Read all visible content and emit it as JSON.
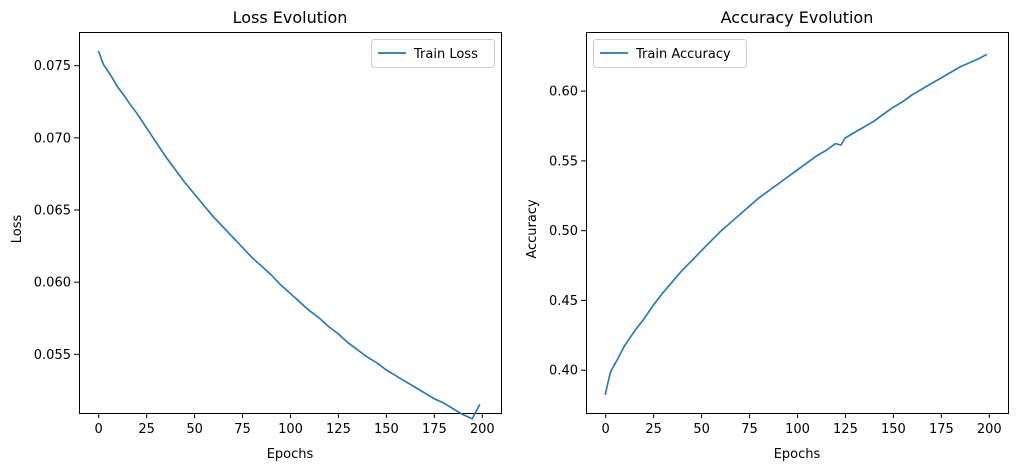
{
  "chart_data": [
    {
      "type": "line",
      "title": "Loss Evolution",
      "xlabel": "Epochs",
      "ylabel": "Loss",
      "xlim": [
        -10,
        210
      ],
      "ylim": [
        0.0509,
        0.0773
      ],
      "xticks": [
        0,
        25,
        50,
        75,
        100,
        125,
        150,
        175,
        200
      ],
      "yticks": [
        0.055,
        0.06,
        0.065,
        0.07,
        0.075
      ],
      "ytick_labels": [
        "0.055",
        "0.060",
        "0.065",
        "0.070",
        "0.075"
      ],
      "legend_position": "top-right",
      "grid": false,
      "series": [
        {
          "name": "Train Loss",
          "color": "#1f77b4",
          "x": [
            0,
            1,
            2,
            3,
            4,
            5,
            7,
            10,
            13,
            16,
            20,
            25,
            30,
            35,
            40,
            45,
            50,
            55,
            60,
            65,
            70,
            75,
            80,
            85,
            90,
            95,
            100,
            105,
            110,
            115,
            120,
            125,
            130,
            135,
            140,
            145,
            150,
            155,
            160,
            165,
            170,
            175,
            180,
            185,
            190,
            195,
            199
          ],
          "values": [
            0.076,
            0.0757,
            0.0753,
            0.075,
            0.0748,
            0.0746,
            0.0742,
            0.0735,
            0.073,
            0.0724,
            0.0717,
            0.0707,
            0.0697,
            0.0687,
            0.0678,
            0.0669,
            0.0661,
            0.0653,
            0.0645,
            0.0638,
            0.0631,
            0.0624,
            0.0617,
            0.0611,
            0.0605,
            0.0598,
            0.0592,
            0.0586,
            0.058,
            0.0575,
            0.0569,
            0.0564,
            0.0558,
            0.0553,
            0.0548,
            0.0544,
            0.0539,
            0.0535,
            0.0531,
            0.0527,
            0.0523,
            0.0519,
            0.0516,
            0.0512,
            0.0508,
            0.0505,
            0.0515
          ]
        }
      ]
    },
    {
      "type": "line",
      "title": "Accuracy Evolution",
      "xlabel": "Epochs",
      "ylabel": "Accuracy",
      "xlim": [
        -10,
        210
      ],
      "ylim": [
        0.369,
        0.642
      ],
      "xticks": [
        0,
        25,
        50,
        75,
        100,
        125,
        150,
        175,
        200
      ],
      "yticks": [
        0.4,
        0.45,
        0.5,
        0.55,
        0.6
      ],
      "ytick_labels": [
        "0.40",
        "0.45",
        "0.50",
        "0.55",
        "0.60"
      ],
      "legend_position": "top-left",
      "grid": false,
      "series": [
        {
          "name": "Train Accuracy",
          "color": "#1f77b4",
          "x": [
            0,
            1,
            2,
            3,
            5,
            7,
            10,
            13,
            16,
            20,
            25,
            30,
            35,
            40,
            45,
            50,
            55,
            60,
            65,
            70,
            75,
            80,
            85,
            90,
            95,
            100,
            105,
            110,
            115,
            120,
            123,
            125,
            130,
            135,
            140,
            145,
            150,
            155,
            160,
            165,
            170,
            175,
            180,
            185,
            190,
            195,
            199
          ],
          "values": [
            0.382,
            0.388,
            0.394,
            0.399,
            0.404,
            0.409,
            0.417,
            0.423,
            0.429,
            0.436,
            0.446,
            0.455,
            0.463,
            0.471,
            0.478,
            0.485,
            0.492,
            0.499,
            0.505,
            0.511,
            0.517,
            0.523,
            0.528,
            0.533,
            0.538,
            0.543,
            0.548,
            0.553,
            0.557,
            0.562,
            0.561,
            0.566,
            0.57,
            0.574,
            0.578,
            0.583,
            0.588,
            0.592,
            0.597,
            0.601,
            0.605,
            0.609,
            0.613,
            0.617,
            0.62,
            0.623,
            0.626
          ]
        }
      ]
    }
  ]
}
